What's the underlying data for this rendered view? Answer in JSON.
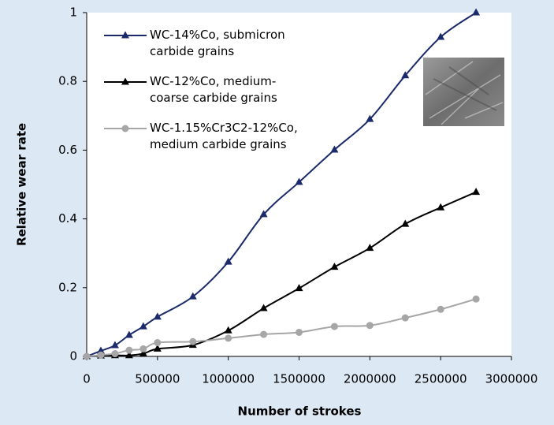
{
  "chart_data": {
    "type": "line",
    "xlabel": "Number of strokes",
    "ylabel": "Relative wear rate",
    "x": [
      0,
      100000,
      200000,
      300000,
      400000,
      500000,
      750000,
      1000000,
      1250000,
      1500000,
      1750000,
      2000000,
      2250000,
      2500000,
      2750000
    ],
    "series": [
      {
        "name": "WC-14%Co, submicron carbide grains",
        "color": "#1b2a6b",
        "marker": "triangle",
        "values": [
          0,
          0.016,
          0.032,
          0.062,
          0.087,
          0.115,
          0.174,
          0.275,
          0.413,
          0.507,
          0.601,
          0.69,
          0.817,
          0.929,
          1.0
        ]
      },
      {
        "name": "WC-12%Co, medium-coarse carbide grains",
        "color": "#000000",
        "marker": "triangle",
        "values": [
          0,
          0.002,
          0.003,
          0.003,
          0.008,
          0.022,
          0.033,
          0.075,
          0.14,
          0.198,
          0.26,
          0.315,
          0.385,
          0.433,
          0.478
        ]
      },
      {
        "name": "WC-1.15%Cr3C2-12%Co, medium carbide grains",
        "color": "#a6a6a6",
        "marker": "circle",
        "values": [
          0,
          0.004,
          0.008,
          0.018,
          0.022,
          0.04,
          0.043,
          0.053,
          0.064,
          0.07,
          0.087,
          0.09,
          0.112,
          0.137,
          0.167
        ]
      }
    ],
    "xlim": [
      0,
      3000000
    ],
    "xticks": [
      0,
      500000,
      1000000,
      1500000,
      2000000,
      2500000,
      3000000
    ],
    "ylim": [
      0,
      1
    ],
    "yticks": [
      0,
      0.2,
      0.4,
      0.6,
      0.8,
      1
    ],
    "grid": false,
    "legend": "upper left"
  }
}
